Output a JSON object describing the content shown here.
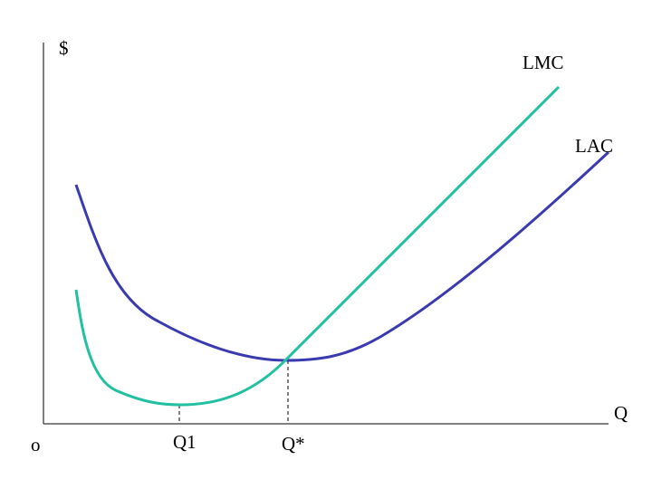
{
  "labels": {
    "y_axis": "$",
    "x_axis": "Q",
    "origin": "o",
    "lmc": "LMC",
    "lac": "LAC",
    "q1": "Q1",
    "q_star": "Q*"
  }
}
